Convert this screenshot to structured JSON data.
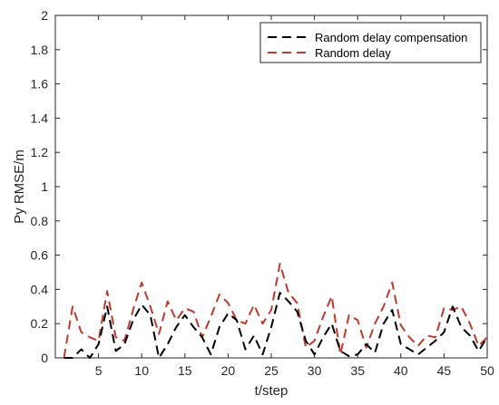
{
  "chart_data": {
    "type": "line",
    "title": "",
    "xlabel": "t/step",
    "ylabel": "Py RMSE/m",
    "xlim": [
      0,
      50
    ],
    "ylim": [
      0,
      2
    ],
    "grid": false,
    "legend_position": "top-right",
    "x_ticks": [
      5,
      10,
      15,
      20,
      25,
      30,
      35,
      40,
      45,
      50
    ],
    "x_tick_labels": [
      "5",
      "10",
      "15",
      "20",
      "25",
      "30",
      "35",
      "40",
      "45",
      "50"
    ],
    "y_ticks": [
      0,
      0.2,
      0.4,
      0.6,
      0.8,
      1,
      1.2,
      1.4,
      1.6,
      1.8,
      2
    ],
    "y_tick_labels": [
      "0",
      "0.2",
      "0.4",
      "0.6",
      "0.8",
      "1",
      "1.2",
      "1.4",
      "1.6",
      "1.8",
      "2"
    ],
    "x": [
      1,
      2,
      3,
      4,
      5,
      6,
      7,
      8,
      9,
      10,
      11,
      12,
      13,
      14,
      15,
      16,
      17,
      18,
      19,
      20,
      21,
      22,
      23,
      24,
      25,
      26,
      27,
      28,
      29,
      30,
      31,
      32,
      33,
      34,
      35,
      36,
      37,
      38,
      39,
      40,
      41,
      42,
      43,
      44,
      45,
      46,
      47,
      48,
      49,
      50
    ],
    "series": [
      {
        "name": "Random delay compensation",
        "color": "#000000",
        "values": [
          0.0,
          0.0,
          0.05,
          0.0,
          0.08,
          0.3,
          0.04,
          0.08,
          0.22,
          0.31,
          0.25,
          0.0,
          0.08,
          0.18,
          0.25,
          0.18,
          0.12,
          0.02,
          0.18,
          0.26,
          0.22,
          0.05,
          0.13,
          0.02,
          0.18,
          0.38,
          0.33,
          0.27,
          0.1,
          0.02,
          0.12,
          0.2,
          0.04,
          0.01,
          0.02,
          0.08,
          0.03,
          0.2,
          0.28,
          0.08,
          0.05,
          0.02,
          0.06,
          0.1,
          0.15,
          0.3,
          0.18,
          0.13,
          0.04,
          0.12
        ]
      },
      {
        "name": "Random delay",
        "color": "#c0392b",
        "values": [
          0.0,
          0.3,
          0.15,
          0.12,
          0.1,
          0.39,
          0.12,
          0.1,
          0.28,
          0.44,
          0.3,
          0.14,
          0.33,
          0.22,
          0.29,
          0.27,
          0.12,
          0.24,
          0.37,
          0.32,
          0.22,
          0.2,
          0.31,
          0.2,
          0.28,
          0.55,
          0.38,
          0.32,
          0.06,
          0.1,
          0.24,
          0.36,
          0.02,
          0.25,
          0.22,
          0.06,
          0.2,
          0.3,
          0.44,
          0.19,
          0.12,
          0.07,
          0.13,
          0.12,
          0.29,
          0.28,
          0.3,
          0.2,
          0.07,
          0.12
        ]
      }
    ]
  }
}
